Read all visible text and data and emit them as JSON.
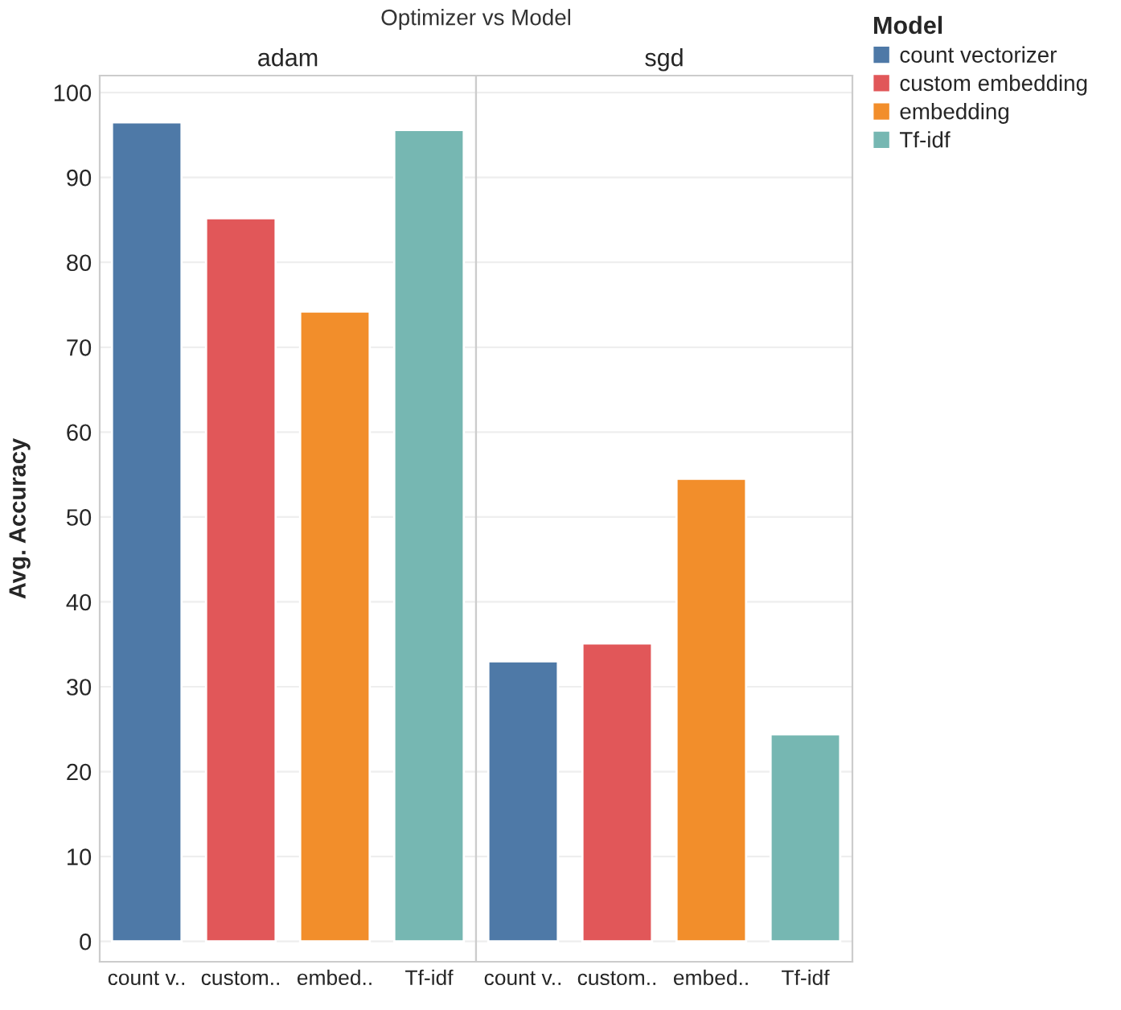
{
  "chart_data": [
    {
      "type": "bar",
      "title": "Optimizer vs Model",
      "subtitle": "adam",
      "ylabel": "Avg. Accuracy",
      "categories": [
        "count v..",
        "custom..",
        "embed..",
        "Tf-idf"
      ],
      "series": [
        {
          "color": "#4e79a7",
          "values": [
            96.5,
            null,
            null,
            null
          ]
        },
        {
          "color": "#e15759",
          "values": [
            null,
            85.2,
            null,
            null
          ]
        },
        {
          "color": "#f28e2b",
          "values": [
            null,
            null,
            74.2,
            null
          ]
        },
        {
          "color": "#76b7b2",
          "values": [
            null,
            null,
            null,
            95.6
          ]
        }
      ],
      "ylim": [
        -2.4,
        102
      ],
      "yticks": [
        0,
        10,
        20,
        30,
        40,
        50,
        60,
        70,
        80,
        90,
        100
      ],
      "grid": "y"
    },
    {
      "type": "bar",
      "subtitle": "sgd",
      "legend_title": "Model",
      "legend": "right",
      "categories": [
        "count v..",
        "custom..",
        "embed..",
        "Tf-idf"
      ],
      "series": [
        {
          "name": "count vectorizer",
          "color": "#4e79a7",
          "values": [
            33.0,
            null,
            null,
            null
          ]
        },
        {
          "name": "custom embedding",
          "color": "#e15759",
          "values": [
            null,
            35.1,
            null,
            null
          ]
        },
        {
          "name": "embedding",
          "color": "#f28e2b",
          "values": [
            null,
            null,
            54.5,
            null
          ]
        },
        {
          "name": "Tf-idf",
          "color": "#76b7b2",
          "values": [
            null,
            null,
            null,
            24.4
          ]
        }
      ],
      "ylim": [
        -2.4,
        102
      ],
      "yticks": [
        0,
        10,
        20,
        30,
        40,
        50,
        60,
        70,
        80,
        90,
        100
      ],
      "grid": "y",
      "tick_labels": "x"
    }
  ]
}
